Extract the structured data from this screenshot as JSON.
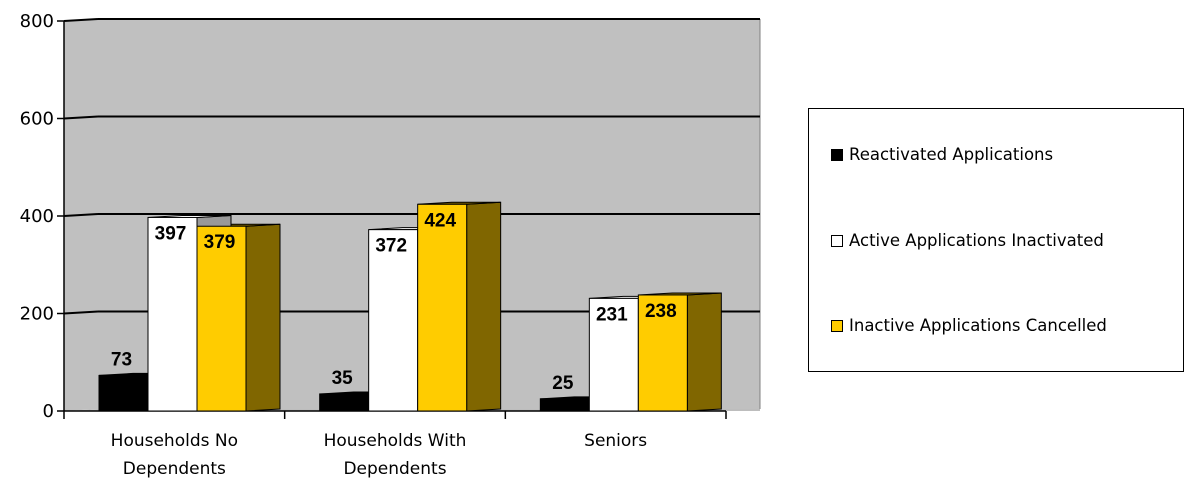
{
  "chart_data": {
    "type": "bar",
    "categories": [
      [
        "Households No",
        "Dependents"
      ],
      [
        "Households With",
        "Dependents"
      ],
      [
        "Seniors"
      ]
    ],
    "series": [
      {
        "name": "Reactivated Applications",
        "values": [
          73,
          35,
          25
        ],
        "color": "#000000",
        "side_color": "#000000",
        "top_color": "#000000"
      },
      {
        "name": "Active Applications Inactivated",
        "values": [
          397,
          372,
          231
        ],
        "color": "#ffffff",
        "side_color": "#999999",
        "top_color": "#ffffff"
      },
      {
        "name": "Inactive Applications Cancelled",
        "values": [
          379,
          424,
          238
        ],
        "color": "#ffcc00",
        "side_color": "#806600",
        "top_color": "#806600"
      }
    ],
    "ylim": [
      0,
      800
    ],
    "yticks": [
      "0",
      "200",
      "400",
      "600",
      "800"
    ],
    "grid": true,
    "legend_position": "right",
    "plot_background": "#c0c0c0"
  }
}
